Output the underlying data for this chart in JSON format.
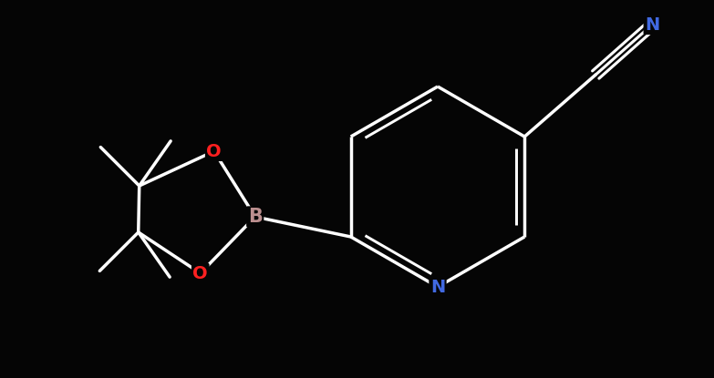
{
  "bg_color": "#050505",
  "bond_color": "#ffffff",
  "atom_colors": {
    "B": "#bc8f8f",
    "O": "#ff2020",
    "N_ring": "#4169e1",
    "N_nitrile": "#4169e1"
  },
  "figsize": [
    7.83,
    4.15
  ],
  "dpi": 100,
  "xlim": [
    0,
    7.83
  ],
  "ylim": [
    0,
    4.15
  ]
}
